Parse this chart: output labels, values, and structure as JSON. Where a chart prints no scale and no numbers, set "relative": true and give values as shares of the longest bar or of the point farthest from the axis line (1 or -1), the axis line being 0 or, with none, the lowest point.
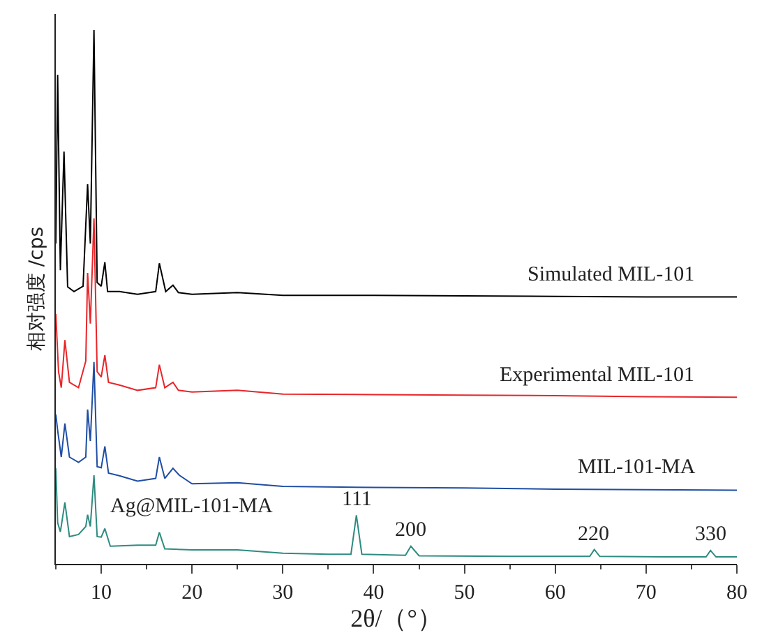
{
  "chart_data": {
    "type": "line",
    "relative": true,
    "xlabel": "2θ/（°）",
    "ylabel": "相对强度 /cps",
    "xlim": [
      5,
      80
    ],
    "xticks": [
      10,
      20,
      30,
      40,
      50,
      60,
      70,
      80
    ],
    "legend": false,
    "marker": "none",
    "line_style": "solid",
    "series": [
      {
        "name": "Simulated MIL-101",
        "color": "#000000",
        "x": [
          5.0,
          5.2,
          5.5,
          5.9,
          6.3,
          7.0,
          8.0,
          8.5,
          8.8,
          9.2,
          9.55,
          10.0,
          10.4,
          10.7,
          12.0,
          14.0,
          16.0,
          16.4,
          17.1,
          17.9,
          18.5,
          20.0,
          25.0,
          30.0,
          40.0,
          50.0,
          60.0,
          70.0,
          80.0
        ],
        "values": [
          0.6,
          0.916,
          0.55,
          0.772,
          0.519,
          0.51,
          0.52,
          0.711,
          0.6,
          1.0,
          0.527,
          0.52,
          0.565,
          0.51,
          0.51,
          0.505,
          0.51,
          0.563,
          0.51,
          0.522,
          0.508,
          0.505,
          0.508,
          0.503,
          0.503,
          0.502,
          0.501,
          0.5,
          0.5
        ]
      },
      {
        "name": "Experimental MIL-101",
        "color": "#e8262a",
        "x": [
          5.0,
          5.3,
          5.6,
          6.0,
          6.5,
          7.5,
          8.3,
          8.5,
          8.8,
          9.2,
          9.55,
          10.0,
          10.4,
          10.8,
          12.0,
          14.0,
          16.0,
          16.4,
          17.0,
          17.9,
          18.5,
          20.0,
          25.0,
          30.0,
          40.0,
          50.0,
          60.0,
          70.0,
          80.0
        ],
        "values": [
          0.468,
          0.36,
          0.33,
          0.419,
          0.34,
          0.33,
          0.38,
          0.545,
          0.45,
          0.647,
          0.36,
          0.35,
          0.391,
          0.34,
          0.335,
          0.325,
          0.33,
          0.373,
          0.33,
          0.34,
          0.325,
          0.322,
          0.325,
          0.318,
          0.317,
          0.316,
          0.315,
          0.313,
          0.312
        ]
      },
      {
        "name": "MIL-101-MA",
        "color": "#1f4ea3",
        "x": [
          5.0,
          5.2,
          5.6,
          6.0,
          6.5,
          7.5,
          8.3,
          8.5,
          8.8,
          9.2,
          9.55,
          10.0,
          10.4,
          10.8,
          12.0,
          14.0,
          16.0,
          16.4,
          17.0,
          17.9,
          18.6,
          20.0,
          25.0,
          30.0,
          40.0,
          50.0,
          60.0,
          70.0,
          80.0
        ],
        "values": [
          0.28,
          0.25,
          0.2,
          0.263,
          0.2,
          0.19,
          0.2,
          0.289,
          0.23,
          0.378,
          0.182,
          0.18,
          0.22,
          0.17,
          0.165,
          0.155,
          0.16,
          0.2,
          0.16,
          0.179,
          0.166,
          0.15,
          0.152,
          0.145,
          0.143,
          0.142,
          0.14,
          0.139,
          0.138
        ]
      },
      {
        "name": "Ag@MIL-101-MA",
        "color": "#2e8b80",
        "x": [
          5.0,
          5.2,
          5.5,
          6.0,
          6.5,
          7.5,
          8.3,
          8.5,
          8.8,
          9.2,
          9.55,
          10.0,
          10.4,
          11.0,
          14.0,
          16.0,
          16.4,
          17.0,
          20.0,
          25.0,
          30.0,
          35.0,
          37.5,
          38.1,
          38.7,
          43.5,
          44.1,
          45.0,
          55.0,
          63.8,
          64.3,
          64.9,
          72.0,
          76.6,
          77.1,
          77.7,
          80.0
        ],
        "values": [
          0.179,
          0.077,
          0.06,
          0.115,
          0.051,
          0.055,
          0.07,
          0.092,
          0.07,
          0.166,
          0.051,
          0.05,
          0.066,
          0.033,
          0.035,
          0.035,
          0.059,
          0.028,
          0.026,
          0.026,
          0.02,
          0.018,
          0.018,
          0.091,
          0.018,
          0.016,
          0.033,
          0.015,
          0.014,
          0.014,
          0.027,
          0.014,
          0.013,
          0.013,
          0.025,
          0.013,
          0.013
        ]
      }
    ],
    "annotations": [
      {
        "text": "111",
        "x": 38.1,
        "y": 0.091
      },
      {
        "text": "200",
        "x": 44.1,
        "y": 0.033
      },
      {
        "text": "220",
        "x": 64.3,
        "y": 0.027
      },
      {
        "text": "330",
        "x": 77.1,
        "y": 0.025
      }
    ]
  }
}
